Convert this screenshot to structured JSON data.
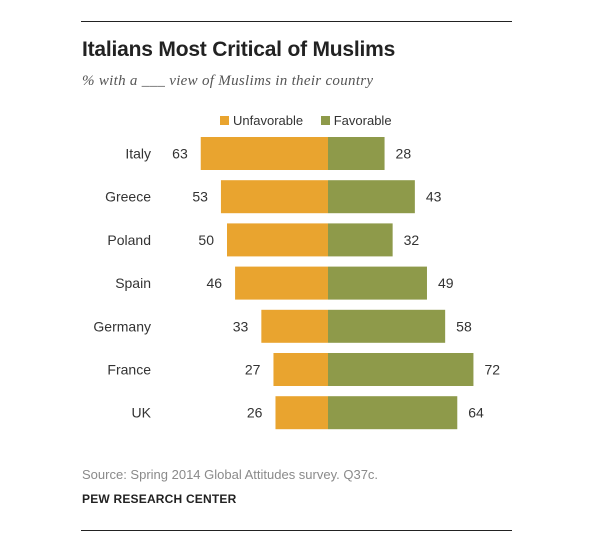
{
  "title": "Italians Most Critical of Muslims",
  "subtitle": "% with a ___ view of Muslims in their country",
  "legend": {
    "unfavorable": "Unfavorable",
    "favorable": "Favorable"
  },
  "colors": {
    "unfavorable": "#E9A42F",
    "favorable": "#8E9A4A"
  },
  "source": "Source: Spring 2014 Global Attitudes survey. Q37c.",
  "organization": "PEW RESEARCH CENTER",
  "chart_data": {
    "type": "bar",
    "orientation": "diverging-horizontal",
    "title": "Italians Most Critical of Muslims",
    "subtitle": "% with a ___ view of Muslims in their country",
    "categories": [
      "Italy",
      "Greece",
      "Poland",
      "Spain",
      "Germany",
      "France",
      "UK"
    ],
    "series": [
      {
        "name": "Unfavorable",
        "values": [
          63,
          53,
          50,
          46,
          33,
          27,
          26
        ]
      },
      {
        "name": "Favorable",
        "values": [
          28,
          43,
          32,
          49,
          58,
          72,
          64
        ]
      }
    ],
    "xlim": [
      -100,
      100
    ],
    "grid": false,
    "legend_position": "top-right"
  }
}
